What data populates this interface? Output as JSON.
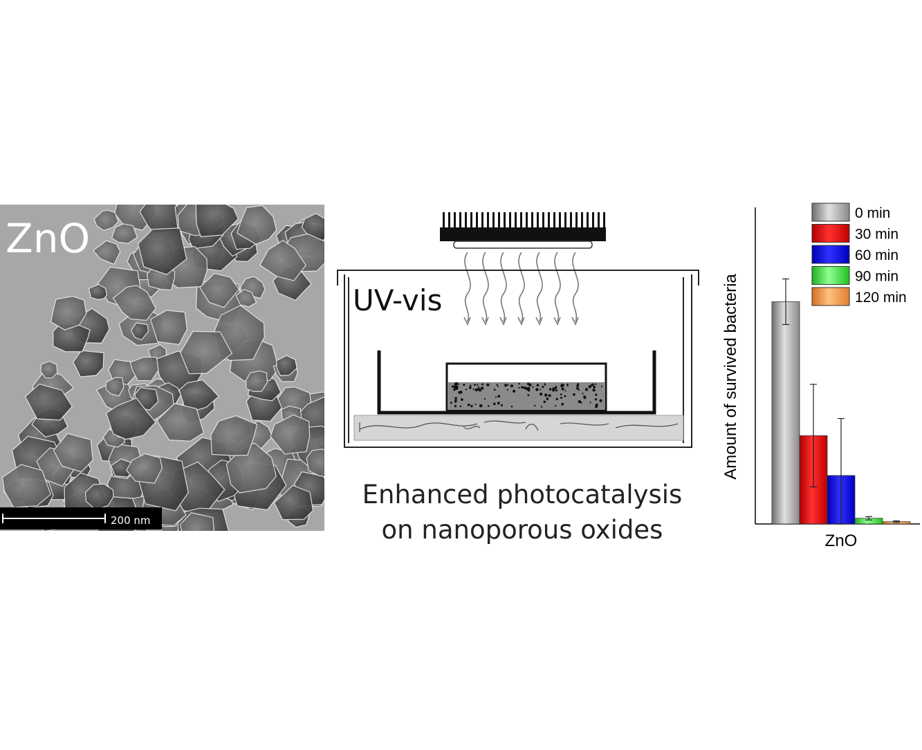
{
  "tem_image": {
    "label": "ZnO",
    "scale_bar_label": "200 nm"
  },
  "setup": {
    "light_label": "UV-vis"
  },
  "caption": {
    "line1": "Enhanced photocatalysis",
    "line2": "on nanoporous oxides"
  },
  "chart_data": {
    "type": "bar",
    "categories": [
      "ZnO"
    ],
    "ylabel": "Amount of survived bacteria",
    "xlabel": "",
    "ylim": [
      0,
      100
    ],
    "grid": false,
    "legend_position": "top-right",
    "series": [
      {
        "name": "0 min",
        "values": [
          78
        ],
        "error": [
          8
        ],
        "color": "#a8a8a8"
      },
      {
        "name": "30 min",
        "values": [
          31
        ],
        "error": [
          18
        ],
        "color": "#e01010"
      },
      {
        "name": "60 min",
        "values": [
          17
        ],
        "error": [
          20
        ],
        "color": "#1010e0"
      },
      {
        "name": "90 min",
        "values": [
          2
        ],
        "error": [
          0.6
        ],
        "color": "#30e030"
      },
      {
        "name": "120 min",
        "values": [
          0.8
        ],
        "error": [
          0.3
        ],
        "color": "#f09030"
      }
    ]
  },
  "colors": {
    "tem_background": "#a9a9a9",
    "particle_dark": "#3a3a3a",
    "particle_mid": "#6a6a6a",
    "water": "#d6d6d6"
  }
}
